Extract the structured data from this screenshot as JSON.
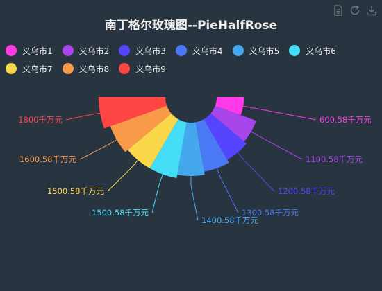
{
  "title": "南丁格尔玫瑰图--PieHalfRose",
  "toolbox": {
    "icons": [
      "data-view-icon",
      "restore-icon",
      "save-image-icon"
    ],
    "color": "#6e7681"
  },
  "chart_data": {
    "type": "pie",
    "rose": "radius",
    "half": true,
    "legend_position": "top",
    "categories": [
      "义乌市1",
      "义乌市2",
      "义乌市3",
      "义乌市4",
      "义乌市5",
      "义乌市6",
      "义乌市7",
      "义乌市8",
      "义乌市9"
    ],
    "values": [
      600.58,
      1100.58,
      1200.58,
      1300.58,
      1400.58,
      1500.58,
      1500.58,
      1600.58,
      1800
    ],
    "labels": [
      "600.58千万元",
      "1100.58千万元",
      "1200.58千万元",
      "1300.58千万元",
      "1400.58千万元",
      "1500.58千万元",
      "1500.58千万元",
      "1600.58千万元",
      "1800千万元"
    ],
    "unit": "千万元",
    "colors": [
      "#ff3ae6",
      "#a846ec",
      "#5545ff",
      "#4b78f5",
      "#45a8ec",
      "#45ddf5",
      "#f9d749",
      "#f99a49",
      "#ff4444"
    ]
  }
}
